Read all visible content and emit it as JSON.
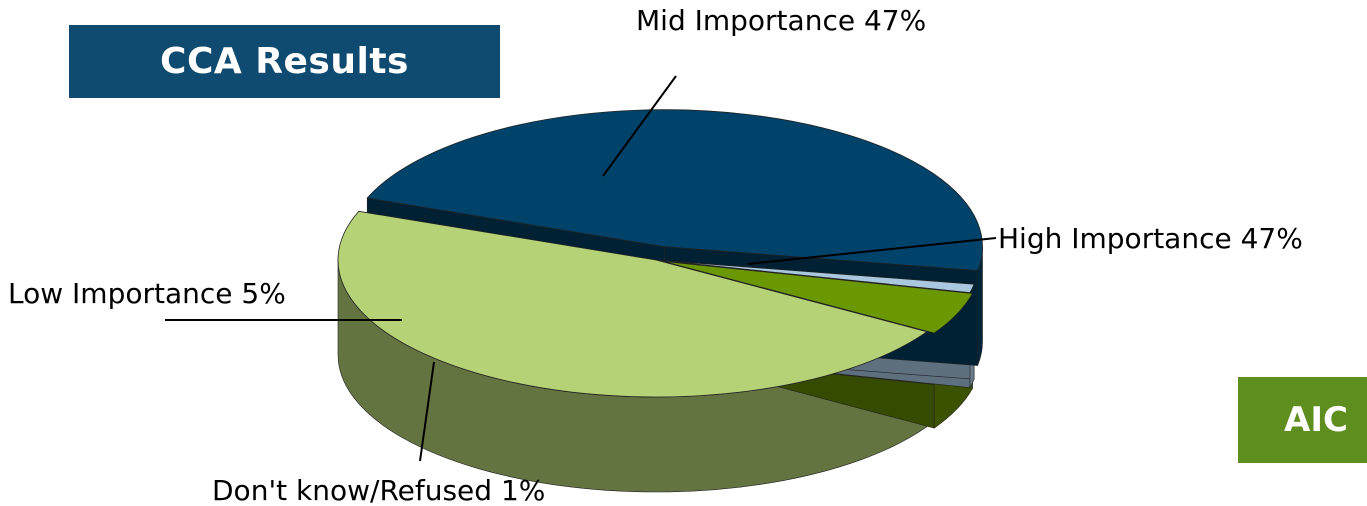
{
  "header": {
    "title": "CCA Results"
  },
  "badge": {
    "text": "AIC"
  },
  "chart_data": {
    "type": "pie",
    "title": "",
    "categories": [
      "High Importance",
      "Mid Importance",
      "Low Importance",
      "Don't know/Refused"
    ],
    "values": [
      47,
      47,
      5,
      1
    ],
    "labels": [
      "High Importance 47%",
      "Mid Importance 47%",
      "Low Importance 5%",
      "Don't know/Refused 1%"
    ],
    "colors": [
      "#00436a",
      "#b5d276",
      "#6b9700",
      "#a9c8e0"
    ],
    "style": "3d-exploded",
    "legend": "none"
  }
}
